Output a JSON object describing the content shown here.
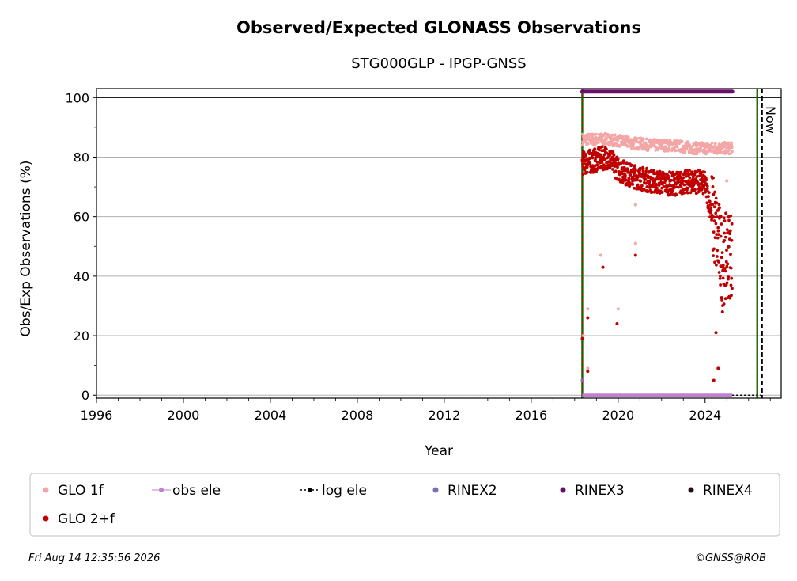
{
  "chart_data": {
    "type": "scatter",
    "title": "Observed/Expected GLONASS Observations",
    "subtitle": "STG000GLP - IPGP-GNSS",
    "xlabel": "Year",
    "ylabel": "Obs/Exp Observations (%)",
    "xlim": [
      1996,
      2027.5
    ],
    "ylim": [
      -1,
      103
    ],
    "x_ticks": [
      "1996",
      "2000",
      "2004",
      "2008",
      "2012",
      "2016",
      "2020",
      "2024"
    ],
    "y_ticks": [
      "0",
      "20",
      "40",
      "60",
      "80",
      "100"
    ],
    "grid": "horizontal",
    "reference_lines": [
      {
        "label": "",
        "x": 2018.35,
        "style": "green-red dashed"
      },
      {
        "label": "",
        "x": 2026.4,
        "style": "green-red dashed"
      },
      {
        "label": "Now",
        "x": 2026.62,
        "style": "black dashed"
      }
    ],
    "series": [
      {
        "name": "GLO 1f",
        "color": "#f4a6a6",
        "x_range": [
          2018.35,
          2025.25
        ],
        "typical": [
          [
            2018.4,
            86
          ],
          [
            2019.5,
            86
          ],
          [
            2020.5,
            85
          ],
          [
            2021.5,
            84
          ],
          [
            2022.5,
            84
          ],
          [
            2023.5,
            83
          ],
          [
            2024.5,
            83
          ],
          [
            2025.2,
            83
          ]
        ],
        "outliers": [
          [
            2018.4,
            20
          ],
          [
            2018.6,
            29
          ],
          [
            2018.6,
            9
          ],
          [
            2019.2,
            47
          ],
          [
            2020.0,
            29
          ],
          [
            2020.8,
            51
          ],
          [
            2020.8,
            64
          ],
          [
            2024.6,
            62
          ],
          [
            2025.0,
            72
          ]
        ]
      },
      {
        "name": "GLO 2+f",
        "color": "#c00000",
        "x_range": [
          2018.35,
          2025.25
        ],
        "typical": [
          [
            2018.4,
            78
          ],
          [
            2019.0,
            79
          ],
          [
            2019.5,
            80
          ],
          [
            2020.0,
            76
          ],
          [
            2020.5,
            74
          ],
          [
            2021.5,
            72
          ],
          [
            2022.5,
            71
          ],
          [
            2023.5,
            72
          ],
          [
            2024.0,
            71
          ],
          [
            2024.5,
            55
          ],
          [
            2024.8,
            45
          ],
          [
            2025.2,
            48
          ]
        ],
        "outliers": [
          [
            2018.35,
            19
          ],
          [
            2018.6,
            26
          ],
          [
            2018.6,
            8
          ],
          [
            2019.3,
            43
          ],
          [
            2019.95,
            24
          ],
          [
            2020.8,
            47
          ],
          [
            2024.4,
            5
          ],
          [
            2024.6,
            9
          ],
          [
            2024.5,
            21
          ],
          [
            2024.8,
            28
          ]
        ]
      },
      {
        "name": "obs ele",
        "color": "#c080d0",
        "x_range": [
          2018.35,
          2025.25
        ],
        "value": 0
      },
      {
        "name": "log ele",
        "color": "#000000",
        "x_range": [
          2025.25,
          2026.62
        ],
        "value": 0,
        "style": "dotted"
      },
      {
        "name": "RINEX2",
        "color": "#7b6fb5",
        "points": [
          [
            2018.35,
            5
          ]
        ]
      },
      {
        "name": "RINEX3",
        "color": "#6b0f6b",
        "x_range": [
          2018.35,
          2025.25
        ],
        "value": 102
      },
      {
        "name": "RINEX4",
        "color": "#2a0a1a",
        "points": []
      }
    ],
    "legend": {
      "placement": "bottom",
      "entries": [
        "GLO 1f",
        "obs ele",
        "log ele",
        "RINEX2",
        "RINEX3",
        "RINEX4",
        "GLO 2+f"
      ]
    }
  },
  "footer": {
    "timestamp": "Fri Aug 14 12:35:56 2026",
    "credit": "©GNSS@ROB"
  }
}
